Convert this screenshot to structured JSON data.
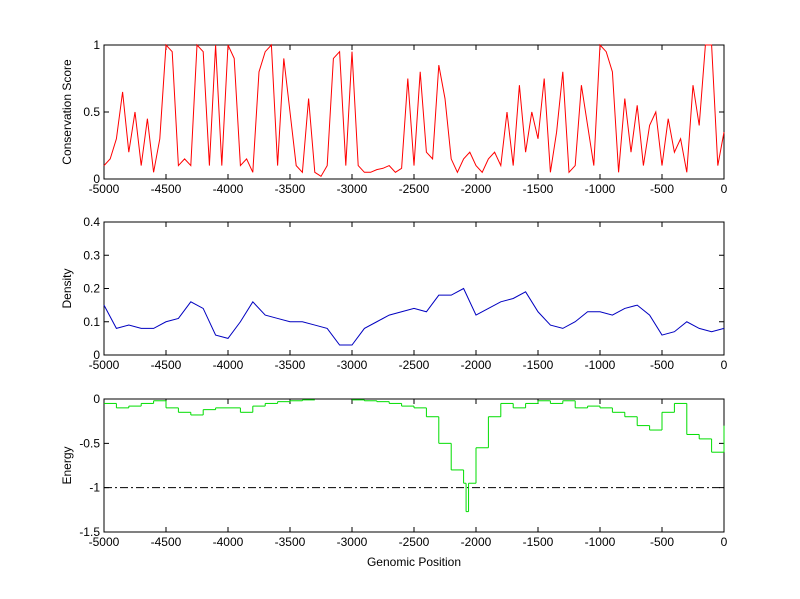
{
  "chart_data": [
    {
      "type": "line",
      "ylabel": "Conservation Score",
      "color": "#ff0000",
      "xlim": [
        -5000,
        0
      ],
      "xticks": [
        -5000,
        -4500,
        -4000,
        -3500,
        -3000,
        -2500,
        -2000,
        -1500,
        -1000,
        -500,
        0
      ],
      "ylim": [
        0,
        1
      ],
      "yticks": [
        0,
        0.5,
        1
      ],
      "x": [
        -5000,
        -4950,
        -4900,
        -4850,
        -4800,
        -4750,
        -4700,
        -4650,
        -4600,
        -4550,
        -4500,
        -4450,
        -4400,
        -4350,
        -4300,
        -4250,
        -4200,
        -4150,
        -4100,
        -4050,
        -4000,
        -3950,
        -3900,
        -3850,
        -3800,
        -3750,
        -3700,
        -3650,
        -3600,
        -3550,
        -3500,
        -3450,
        -3400,
        -3350,
        -3300,
        -3250,
        -3200,
        -3150,
        -3100,
        -3050,
        -3000,
        -2950,
        -2900,
        -2850,
        -2800,
        -2750,
        -2700,
        -2650,
        -2600,
        -2550,
        -2500,
        -2450,
        -2400,
        -2350,
        -2300,
        -2250,
        -2200,
        -2150,
        -2100,
        -2050,
        -2000,
        -1950,
        -1900,
        -1850,
        -1800,
        -1750,
        -1700,
        -1650,
        -1600,
        -1550,
        -1500,
        -1450,
        -1400,
        -1350,
        -1300,
        -1250,
        -1200,
        -1150,
        -1100,
        -1050,
        -1000,
        -950,
        -900,
        -850,
        -800,
        -750,
        -700,
        -650,
        -600,
        -550,
        -500,
        -450,
        -400,
        -350,
        -300,
        -250,
        -200,
        -150,
        -100,
        -50,
        0
      ],
      "values": [
        0.1,
        0.15,
        0.3,
        0.65,
        0.2,
        0.5,
        0.1,
        0.45,
        0.05,
        0.3,
        1,
        0.95,
        0.1,
        0.15,
        0.1,
        1,
        0.95,
        0.1,
        1,
        0.1,
        1,
        0.9,
        0.1,
        0.15,
        0.05,
        0.8,
        0.95,
        1,
        0.1,
        0.9,
        0.5,
        0.1,
        0.05,
        0.6,
        0.05,
        0.02,
        0.1,
        0.9,
        0.95,
        0.1,
        0.95,
        0.1,
        0.05,
        0.05,
        0.07,
        0.08,
        0.1,
        0.05,
        0.08,
        0.75,
        0.1,
        0.8,
        0.2,
        0.15,
        0.85,
        0.6,
        0.15,
        0.05,
        0.15,
        0.2,
        0.1,
        0.05,
        0.15,
        0.2,
        0.1,
        0.5,
        0.1,
        0.7,
        0.2,
        0.5,
        0.3,
        0.75,
        0.05,
        0.35,
        0.8,
        0.05,
        0.1,
        0.7,
        0.4,
        0.1,
        1,
        0.95,
        0.8,
        0.05,
        0.6,
        0.2,
        0.55,
        0.1,
        0.4,
        0.5,
        0.1,
        0.45,
        0.2,
        0.3,
        0.05,
        0.7,
        0.4,
        1,
        1,
        0.1,
        0.35
      ]
    },
    {
      "type": "line",
      "ylabel": "Density",
      "color": "#0000c0",
      "xlim": [
        -5000,
        0
      ],
      "xticks": [
        -5000,
        -4500,
        -4000,
        -3500,
        -3000,
        -2500,
        -2000,
        -1500,
        -1000,
        -500,
        0
      ],
      "ylim": [
        0,
        0.4
      ],
      "yticks": [
        0,
        0.1,
        0.2,
        0.3,
        0.4
      ],
      "x": [
        -5000,
        -4900,
        -4800,
        -4700,
        -4600,
        -4500,
        -4400,
        -4300,
        -4200,
        -4100,
        -4000,
        -3900,
        -3800,
        -3700,
        -3600,
        -3500,
        -3400,
        -3300,
        -3200,
        -3100,
        -3000,
        -2900,
        -2800,
        -2700,
        -2600,
        -2500,
        -2400,
        -2300,
        -2200,
        -2100,
        -2000,
        -1900,
        -1800,
        -1700,
        -1600,
        -1500,
        -1400,
        -1300,
        -1200,
        -1100,
        -1000,
        -900,
        -800,
        -700,
        -600,
        -500,
        -400,
        -300,
        -200,
        -100,
        0
      ],
      "values": [
        0.15,
        0.08,
        0.09,
        0.08,
        0.08,
        0.1,
        0.11,
        0.16,
        0.14,
        0.06,
        0.05,
        0.1,
        0.16,
        0.12,
        0.11,
        0.1,
        0.1,
        0.09,
        0.08,
        0.03,
        0.03,
        0.08,
        0.1,
        0.12,
        0.13,
        0.14,
        0.13,
        0.18,
        0.18,
        0.2,
        0.12,
        0.14,
        0.16,
        0.17,
        0.19,
        0.13,
        0.09,
        0.08,
        0.1,
        0.13,
        0.13,
        0.12,
        0.14,
        0.15,
        0.12,
        0.06,
        0.07,
        0.1,
        0.08,
        0.07,
        0.08
      ]
    },
    {
      "type": "step",
      "ylabel": "Energy",
      "xlabel": "Genomic Position",
      "color": "#00dd00",
      "xlim": [
        -5000,
        0
      ],
      "xticks": [
        -5000,
        -4500,
        -4000,
        -3500,
        -3000,
        -2500,
        -2000,
        -1500,
        -1000,
        -500,
        0
      ],
      "ylim": [
        -1.5,
        0
      ],
      "yticks": [
        -1.5,
        -1,
        -0.5,
        0
      ],
      "reference_line": -1,
      "x": [
        -5000,
        -4900,
        -4800,
        -4700,
        -4600,
        -4500,
        -4400,
        -4300,
        -4200,
        -4100,
        -4000,
        -3900,
        -3800,
        -3700,
        -3600,
        -3500,
        -3400,
        -3300,
        -3200,
        -3100,
        -3000,
        -2900,
        -2800,
        -2700,
        -2600,
        -2500,
        -2400,
        -2300,
        -2200,
        -2100,
        -2080,
        -2060,
        -2000,
        -1900,
        -1800,
        -1700,
        -1600,
        -1500,
        -1400,
        -1300,
        -1200,
        -1100,
        -1000,
        -900,
        -800,
        -700,
        -600,
        -500,
        -400,
        -300,
        -200,
        -100,
        0
      ],
      "values": [
        -0.05,
        -0.1,
        -0.08,
        -0.05,
        -0.02,
        -0.1,
        -0.15,
        -0.18,
        -0.12,
        -0.1,
        -0.1,
        -0.15,
        -0.08,
        -0.05,
        -0.03,
        -0.02,
        -0.01,
        null,
        null,
        null,
        -0.01,
        -0.02,
        -0.03,
        -0.05,
        -0.08,
        -0.1,
        -0.2,
        -0.5,
        -0.8,
        -0.95,
        -1.27,
        -0.95,
        -0.55,
        -0.2,
        -0.05,
        -0.1,
        -0.05,
        -0.02,
        -0.05,
        -0.02,
        -0.1,
        -0.08,
        -0.1,
        -0.15,
        -0.2,
        -0.3,
        -0.35,
        -0.15,
        -0.05,
        -0.4,
        -0.45,
        -0.6,
        -0.3
      ]
    }
  ]
}
